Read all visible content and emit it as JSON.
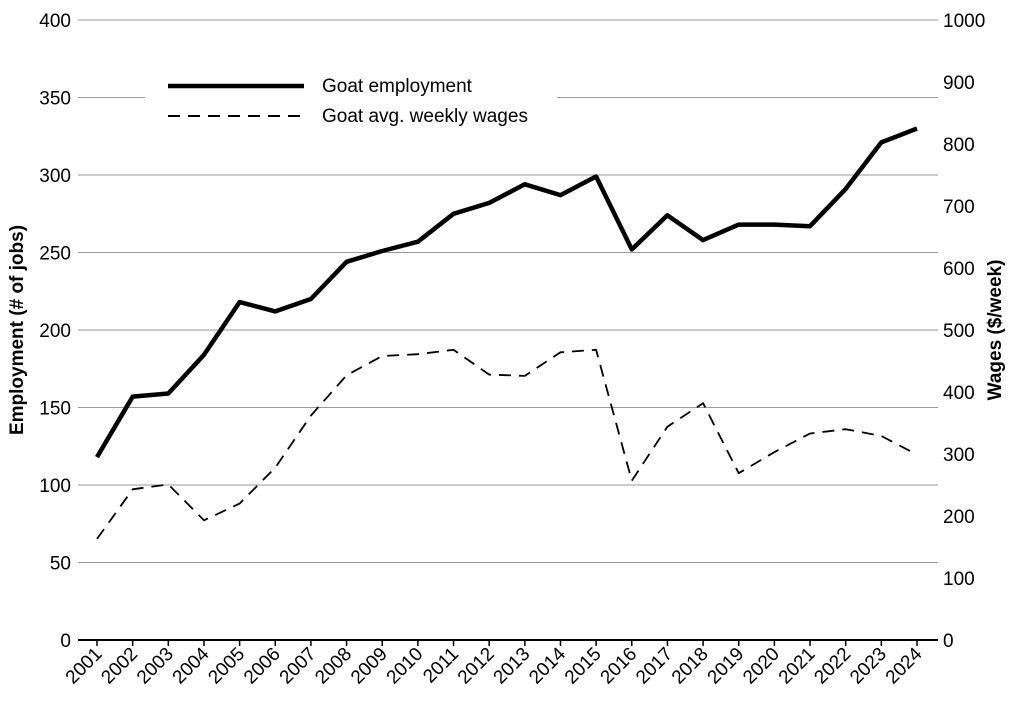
{
  "chart_data": {
    "type": "line",
    "title": "",
    "x": [
      "2001",
      "2002",
      "2003",
      "2004",
      "2005",
      "2006",
      "2007",
      "2008",
      "2009",
      "2010",
      "2011",
      "2012",
      "2013",
      "2014",
      "2015",
      "2016",
      "2017",
      "2018",
      "2019",
      "2020",
      "2021",
      "2022",
      "2023",
      "2024"
    ],
    "series": [
      {
        "name": "Goat employment",
        "axis": "left",
        "style": "solid",
        "values": [
          118,
          157,
          159,
          184,
          218,
          212,
          220,
          244,
          251,
          257,
          275,
          282,
          294,
          287,
          299,
          252,
          274,
          258,
          268,
          268,
          267,
          291,
          321,
          330
        ]
      },
      {
        "name": "Goat avg. weekly wages",
        "axis": "right",
        "style": "dashed",
        "values": [
          163,
          243,
          251,
          193,
          220,
          278,
          362,
          427,
          458,
          461,
          468,
          428,
          426,
          464,
          468,
          257,
          344,
          382,
          269,
          303,
          333,
          340,
          329,
          299
        ]
      }
    ],
    "ylabel": "Employment (# of jobs)",
    "y2label": "Wages ($/week)",
    "ylim": [
      0,
      400
    ],
    "y2lim": [
      0,
      1000
    ],
    "yticks": [
      "0",
      "50",
      "100",
      "150",
      "200",
      "250",
      "300",
      "350",
      "400"
    ],
    "y2ticks": [
      "0",
      "100",
      "200",
      "300",
      "400",
      "500",
      "600",
      "700",
      "800",
      "900",
      "1000"
    ],
    "grid": "horizontal",
    "legend_placement": "top-left",
    "colors": {
      "line": "#000000",
      "grid": "#999999",
      "background": "#ffffff"
    }
  }
}
